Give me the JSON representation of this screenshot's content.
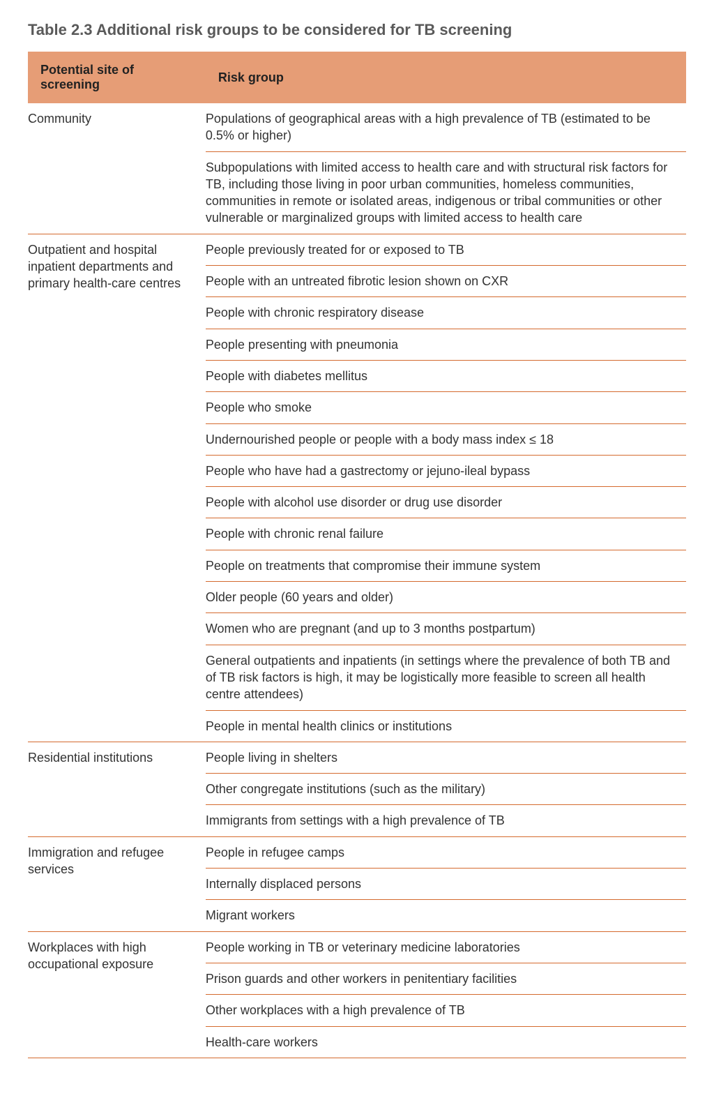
{
  "title": "Table 2.3 Additional risk groups to be considered for TB screening",
  "colors": {
    "header_bg": "#e69d76",
    "rule": "#d46a2e",
    "text": "#3a3a3a"
  },
  "columns": {
    "site": "Potential site of screening",
    "risk": "Risk group"
  },
  "groups": [
    {
      "site": "Community",
      "risks": [
        "Populations of geographical areas with a high prevalence of TB (estimated to be 0.5% or higher)",
        "Subpopulations with limited access to health care and with structural risk factors for TB, including those living in poor urban communities, homeless communities, communities in remote or isolated areas, indigenous or tribal communities or other vulnerable or marginalized groups with limited access to health care"
      ]
    },
    {
      "site": "Outpatient and hospital inpatient departments and primary health-care centres",
      "risks": [
        "People previously treated for or exposed to TB",
        "People with an untreated fibrotic lesion shown on CXR",
        "People with chronic respiratory disease",
        "People presenting with pneumonia",
        "People with diabetes mellitus",
        "People who smoke",
        "Undernourished people or people with a body mass index ≤ 18",
        "People who have had a gastrectomy or jejuno-ileal bypass",
        "People with alcohol use disorder or drug use disorder",
        "People with chronic renal failure",
        "People on treatments that compromise their immune system",
        "Older people (60 years and older)",
        "Women who are pregnant (and up to 3 months postpartum)",
        "General outpatients and inpatients (in settings where the prevalence of both TB and of TB risk factors is high, it may be logistically more feasible to screen all health centre attendees)",
        "People in mental health clinics or institutions"
      ]
    },
    {
      "site": "Residential institutions",
      "risks": [
        "People living in shelters",
        "Other congregate institutions (such as the military)",
        "Immigrants from settings with a high prevalence of TB"
      ]
    },
    {
      "site": "Immigration and refugee services",
      "risks": [
        "People in refugee camps",
        "Internally displaced persons",
        "Migrant workers"
      ]
    },
    {
      "site": "Workplaces with high occupational exposure",
      "risks": [
        "People working in TB or veterinary medicine laboratories",
        "Prison guards and other workers in penitentiary facilities",
        "Other workplaces with a high prevalence of TB",
        "Health-care workers"
      ]
    }
  ]
}
